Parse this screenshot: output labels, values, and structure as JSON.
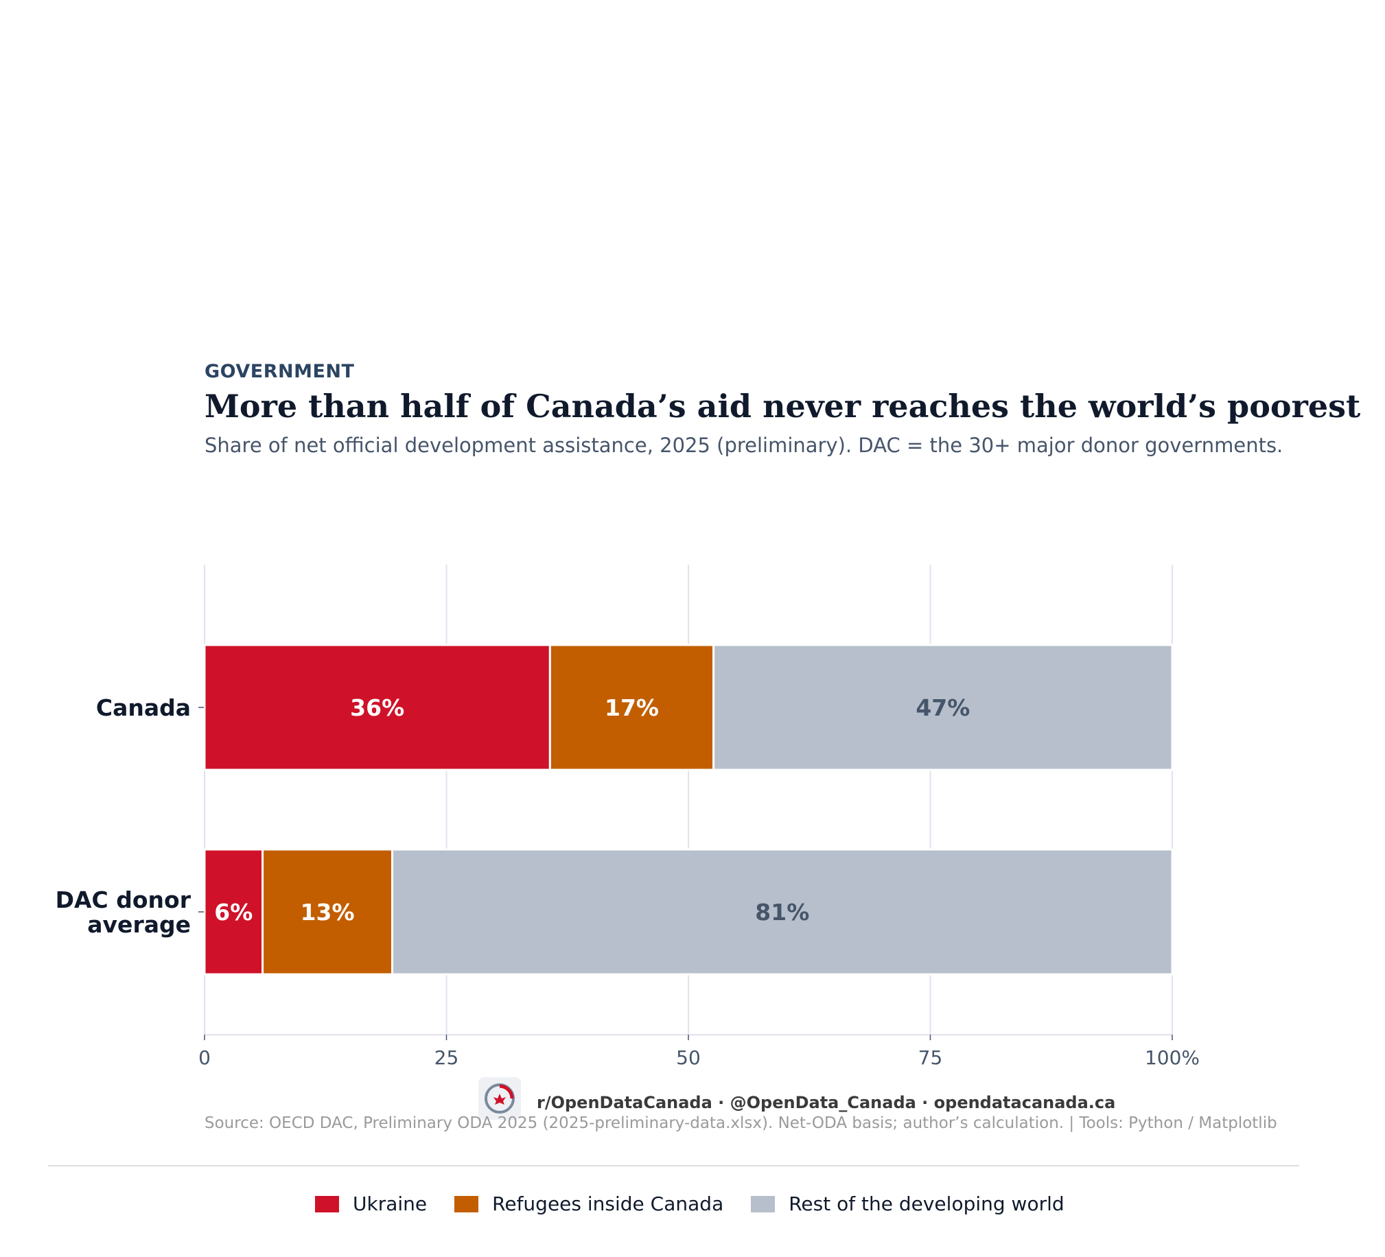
{
  "header": {
    "kicker": "GOVERNMENT",
    "title": "More than half of Canada’s aid never reaches the world’s poorest",
    "subtitle": "Share of net official development assistance, 2025 (preliminary). DAC = the 30+ major donor governments."
  },
  "footer": {
    "handles": "r/OpenDataCanada  ·  @OpenData_Canada  ·  opendatacanada.ca",
    "source": "Source: OECD DAC, Preliminary ODA 2025 (2025-preliminary-data.xlsx). Net-ODA basis; author’s calculation.  |  Tools: Python / Matplotlib"
  },
  "colors": {
    "ukraine": "#cf1229",
    "refugees": "#c35e00",
    "rest": "#b6bfcb",
    "grid": "#e3e1ee",
    "text_dark": "#101a2c",
    "text_muted": "#46556a"
  },
  "chart_data": {
    "type": "bar",
    "orientation": "horizontal",
    "stacked": true,
    "categories": [
      "Canada",
      "DAC donor\naverage"
    ],
    "series": [
      {
        "name": "Ukraine",
        "values": [
          35.7,
          6.0
        ],
        "labels": [
          "36%",
          "6%"
        ]
      },
      {
        "name": "Refugees inside Canada",
        "values": [
          16.9,
          13.4
        ],
        "labels": [
          "17%",
          "13%"
        ]
      },
      {
        "name": "Rest of the developing world",
        "values": [
          47.4,
          80.6
        ],
        "labels": [
          "47%",
          "81%"
        ]
      }
    ],
    "xlim": [
      0,
      100
    ],
    "x_ticks": [
      0,
      25,
      50,
      75,
      100
    ],
    "x_tick_labels": [
      "0",
      "25",
      "50",
      "75",
      "100%"
    ],
    "grid": "vertical",
    "legend": "bottom"
  }
}
